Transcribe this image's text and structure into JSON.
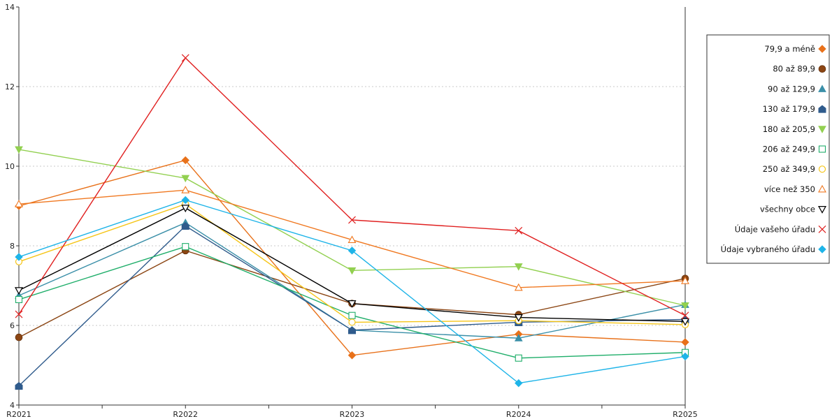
{
  "chart_data": {
    "type": "line",
    "title": "",
    "xlabel": "",
    "ylabel": "",
    "categories": [
      "R2021",
      "R2022",
      "R2023",
      "R2024",
      "R2025"
    ],
    "ylim": [
      4,
      14
    ],
    "yticks": [
      4,
      6,
      8,
      10,
      12,
      14
    ],
    "grid": "horizontal dotted",
    "legend_position": "right",
    "series": [
      {
        "name": "79,9 a méně",
        "color": "#E8711A",
        "marker": "diamond-filled",
        "values": [
          9.0,
          10.15,
          5.25,
          5.78,
          5.58
        ]
      },
      {
        "name": "80 až 89,9",
        "color": "#8B4513",
        "marker": "circle-filled",
        "values": [
          5.7,
          7.88,
          6.55,
          6.27,
          7.18
        ]
      },
      {
        "name": "90 až 129,9",
        "color": "#3A8FA8",
        "marker": "triangle-filled",
        "values": [
          6.75,
          8.58,
          5.88,
          5.68,
          6.52
        ]
      },
      {
        "name": "130 až 179,9",
        "color": "#2F5B8C",
        "marker": "house-filled",
        "values": [
          4.48,
          8.5,
          5.88,
          6.08,
          6.15
        ]
      },
      {
        "name": "180 až 205,9",
        "color": "#92D050",
        "marker": "triangle-down-filled",
        "values": [
          10.42,
          9.7,
          7.38,
          7.48,
          6.5
        ]
      },
      {
        "name": "206 až 249,9",
        "color": "#1FAE6A",
        "marker": "square-open",
        "values": [
          6.65,
          7.98,
          6.25,
          5.18,
          5.32
        ]
      },
      {
        "name": "250 až 349,9",
        "color": "#F5C518",
        "marker": "circle-open",
        "values": [
          7.6,
          9.05,
          6.08,
          6.12,
          6.02
        ]
      },
      {
        "name": "více než 350",
        "color": "#F07820",
        "marker": "triangle-open",
        "values": [
          9.05,
          9.4,
          8.15,
          6.95,
          7.12
        ]
      },
      {
        "name": "všechny obce",
        "color": "#000000",
        "marker": "triangle-down-open",
        "values": [
          6.88,
          8.95,
          6.55,
          6.2,
          6.1
        ]
      },
      {
        "name": "Údaje vašeho úřadu",
        "color": "#E02020",
        "marker": "x",
        "values": [
          6.28,
          12.72,
          8.65,
          8.38,
          6.25
        ]
      },
      {
        "name": "Údaje vybraného úřadu",
        "color": "#1EB4E8",
        "marker": "diamond-filled",
        "values": [
          7.72,
          9.15,
          7.88,
          4.55,
          5.22
        ]
      }
    ]
  }
}
